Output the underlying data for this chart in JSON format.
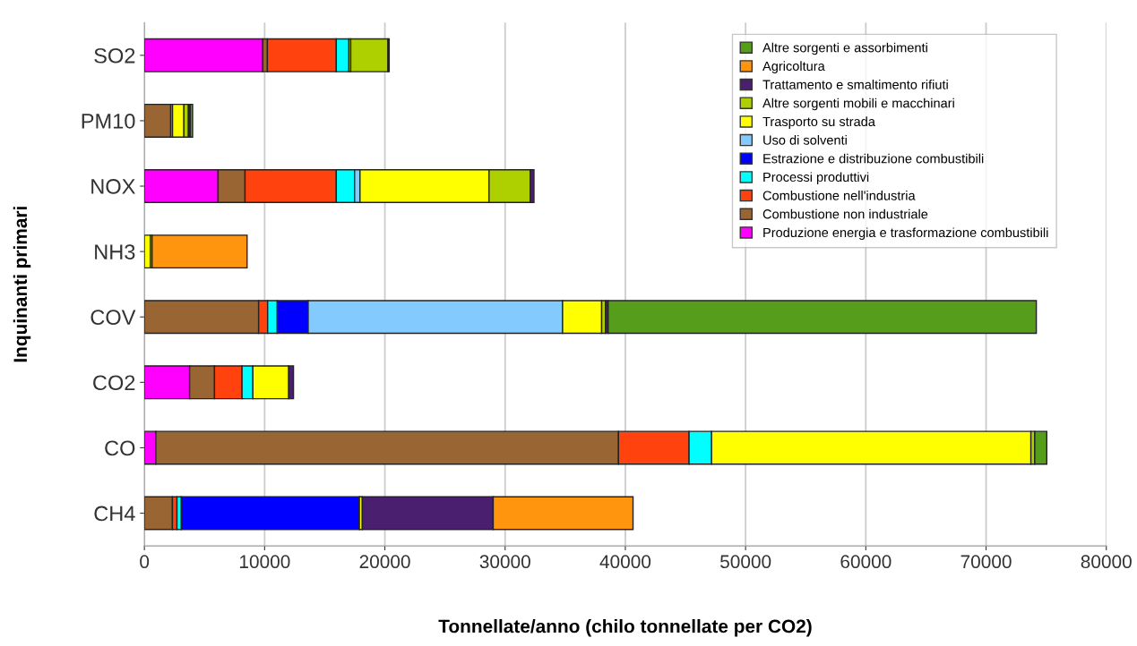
{
  "chart_data": {
    "type": "bar",
    "orientation": "horizontal",
    "stacked": true,
    "xlabel": "Tonnellate/anno (chilo tonnellate per CO2)",
    "ylabel": "Inquinanti primari",
    "categories": [
      "SO2",
      "PM10",
      "NOX",
      "NH3",
      "COV",
      "CO2",
      "CO",
      "CH4"
    ],
    "series": [
      {
        "name": "Produzione energia e trasformazione combustibili",
        "color": "#ff00ff",
        "values": [
          9850,
          null,
          6130,
          null,
          null,
          3760,
          950,
          null
        ]
      },
      {
        "name": "Combustione non industriale",
        "color": "#996633",
        "values": [
          380,
          2190,
          2240,
          null,
          9500,
          2070,
          38480,
          2330
        ]
      },
      {
        "name": "Combustione nell'industria",
        "color": "#ff420e",
        "values": [
          5730,
          null,
          7590,
          null,
          750,
          2290,
          5870,
          380
        ]
      },
      {
        "name": "Processi produttivi",
        "color": "#00ffff",
        "values": [
          1050,
          150,
          1520,
          null,
          800,
          900,
          1870,
          360
        ]
      },
      {
        "name": "Estrazione e distribuzione combustibili",
        "color": "#0000ff",
        "values": [
          null,
          null,
          null,
          null,
          2570,
          null,
          null,
          14810
        ]
      },
      {
        "name": "Uso di solventi",
        "color": "#83caff",
        "values": [
          null,
          null,
          450,
          null,
          21160,
          null,
          null,
          null
        ]
      },
      {
        "name": "Trasporto su strada",
        "color": "#ffff00",
        "values": [
          150,
          950,
          10730,
          500,
          3250,
          2980,
          26560,
          240
        ]
      },
      {
        "name": "Altre sorgenti mobili e macchinari",
        "color": "#aecf00",
        "values": [
          3100,
          370,
          3420,
          140,
          320,
          null,
          320,
          null
        ]
      },
      {
        "name": "Trattamento e smaltimento rifiuti",
        "color": "#4b1f6f",
        "values": [
          100,
          150,
          320,
          null,
          220,
          400,
          null,
          10890
        ]
      },
      {
        "name": "Agricoltura",
        "color": "#ff950e",
        "values": [
          null,
          null,
          null,
          7900,
          null,
          null,
          null,
          11630
        ]
      },
      {
        "name": "Altre sorgenti e assorbimenti",
        "color": "#579d1c",
        "values": [
          null,
          200,
          null,
          null,
          35610,
          null,
          1000,
          null
        ]
      }
    ],
    "xlim": [
      0,
      80000
    ],
    "xticks": [
      0,
      10000,
      20000,
      30000,
      40000,
      50000,
      60000,
      70000,
      80000
    ],
    "grid": "x",
    "legend": "top right"
  }
}
